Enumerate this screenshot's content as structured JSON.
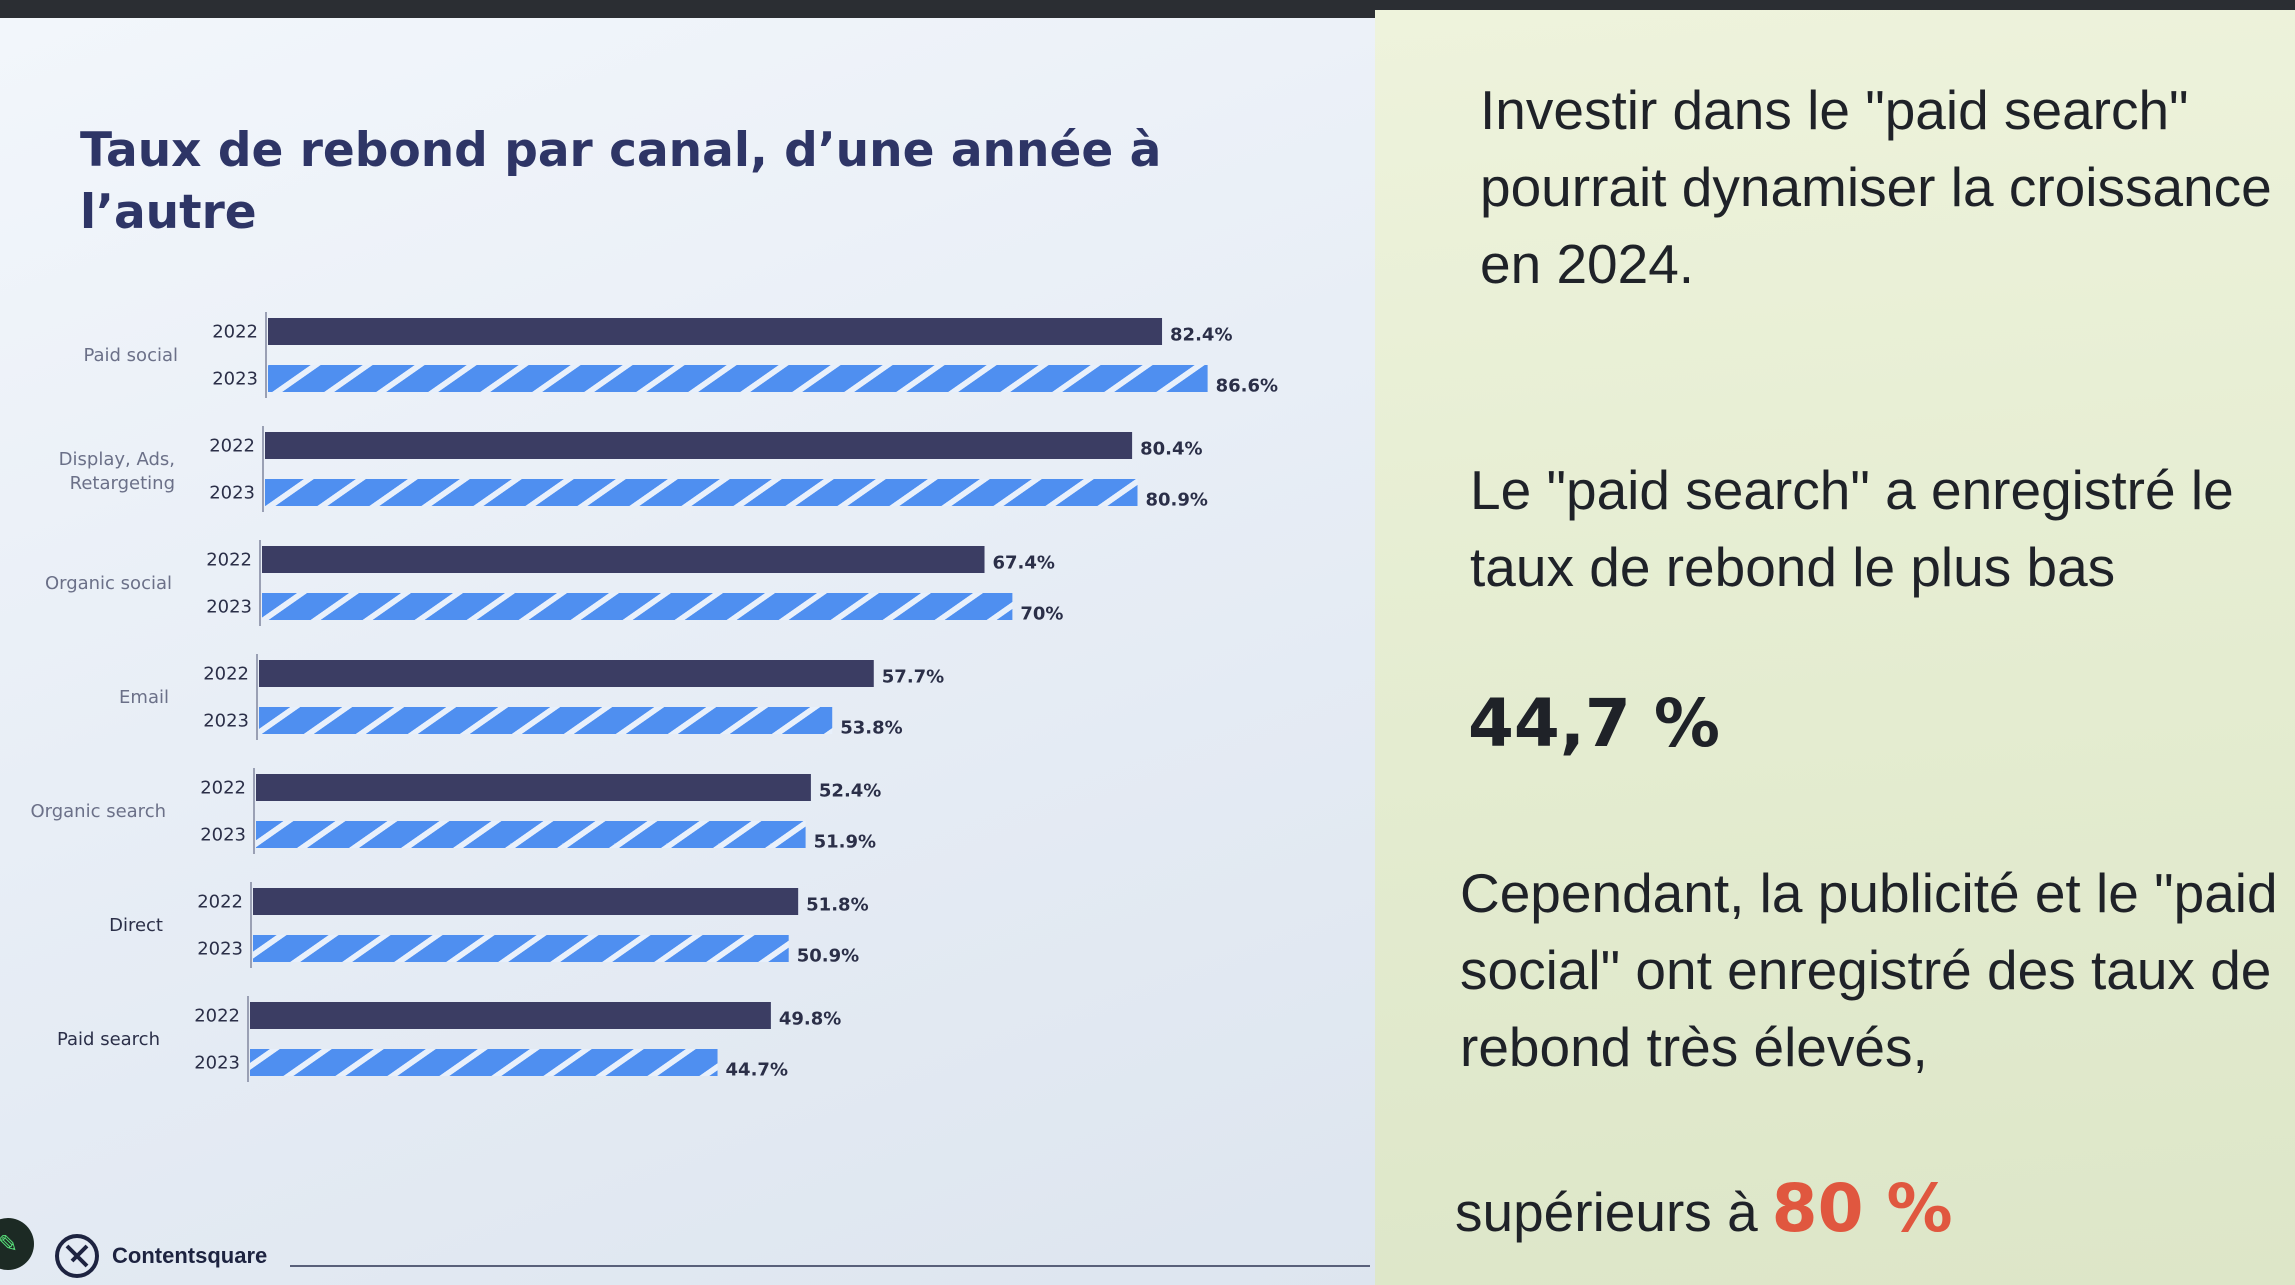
{
  "slide": {
    "title": "Taux de rebond par canal, d’une année à l’autre",
    "brand": "Contentsquare",
    "intro": "Investir dans le \"paid search\" pourrait dynamiser la croissance en 2024.",
    "lowest_text": "Le \"paid search\" a enregistré le taux de rebond le plus bas",
    "lowest_value": "44,7 %",
    "high_text": "Cependant, la publicité et le \"paid social\" ont enregistré des taux de rebond très élevés,",
    "high_tail": "supérieurs à",
    "high_value": "80 %"
  },
  "colors": {
    "bar_2022": "#3b3d63",
    "bar_2023": "#4f8ff0",
    "bar_2023_stripe": "#e8f0fb",
    "title": "#2e3566",
    "accent": "#e0573f"
  },
  "chart_data": {
    "type": "bar",
    "orientation": "horizontal",
    "title": "Taux de rebond par canal, d’une année à l’autre",
    "categories": [
      "Paid social",
      "Display, Ads, Retargeting",
      "Organic social",
      "Email",
      "Organic search",
      "Direct",
      "Paid search"
    ],
    "series": [
      {
        "name": "2022",
        "values": [
          82.4,
          80.4,
          67.4,
          57.7,
          52.4,
          51.8,
          49.8
        ],
        "labels": [
          "82.4%",
          "80.4%",
          "67.4%",
          "57.7%",
          "52.4%",
          "51.8%",
          "49.8%"
        ]
      },
      {
        "name": "2023",
        "values": [
          86.6,
          80.9,
          70,
          53.8,
          51.9,
          50.9,
          44.7
        ],
        "labels": [
          "86.6%",
          "80.9%",
          "70%",
          "53.8%",
          "51.9%",
          "50.9%",
          "44.7%"
        ]
      }
    ],
    "xlim": [
      0,
      100
    ],
    "grid": false,
    "legend": "none"
  }
}
